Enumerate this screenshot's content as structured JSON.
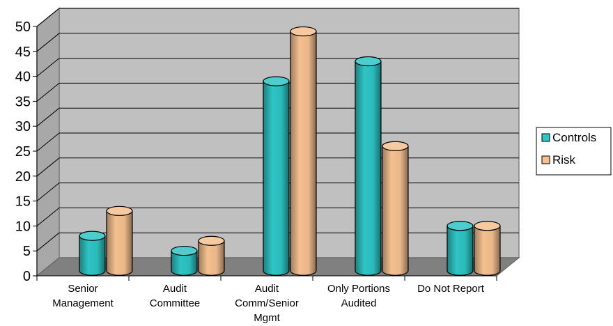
{
  "chart_data": {
    "type": "bar",
    "title": "",
    "xlabel": "",
    "ylabel": "",
    "categories": [
      [
        "Senior",
        "Management"
      ],
      [
        "Audit",
        "Committee"
      ],
      [
        "Audit",
        "Comm/Senior",
        "Mgmt"
      ],
      [
        "Only Portions",
        "Audited"
      ],
      [
        "Do Not Report"
      ]
    ],
    "series": [
      {
        "name": "Controls",
        "color": "#2ec4c4",
        "values": [
          7,
          4,
          38,
          42,
          9
        ]
      },
      {
        "name": "Risk",
        "color": "#f5c090",
        "values": [
          12,
          6,
          48,
          25,
          9
        ]
      }
    ],
    "ylim": [
      0,
      50
    ],
    "yticks": [
      0,
      5,
      10,
      15,
      20,
      25,
      30,
      35,
      40,
      45,
      50
    ],
    "grid": true,
    "legend_position": "right",
    "style": "3d-cylinder"
  }
}
